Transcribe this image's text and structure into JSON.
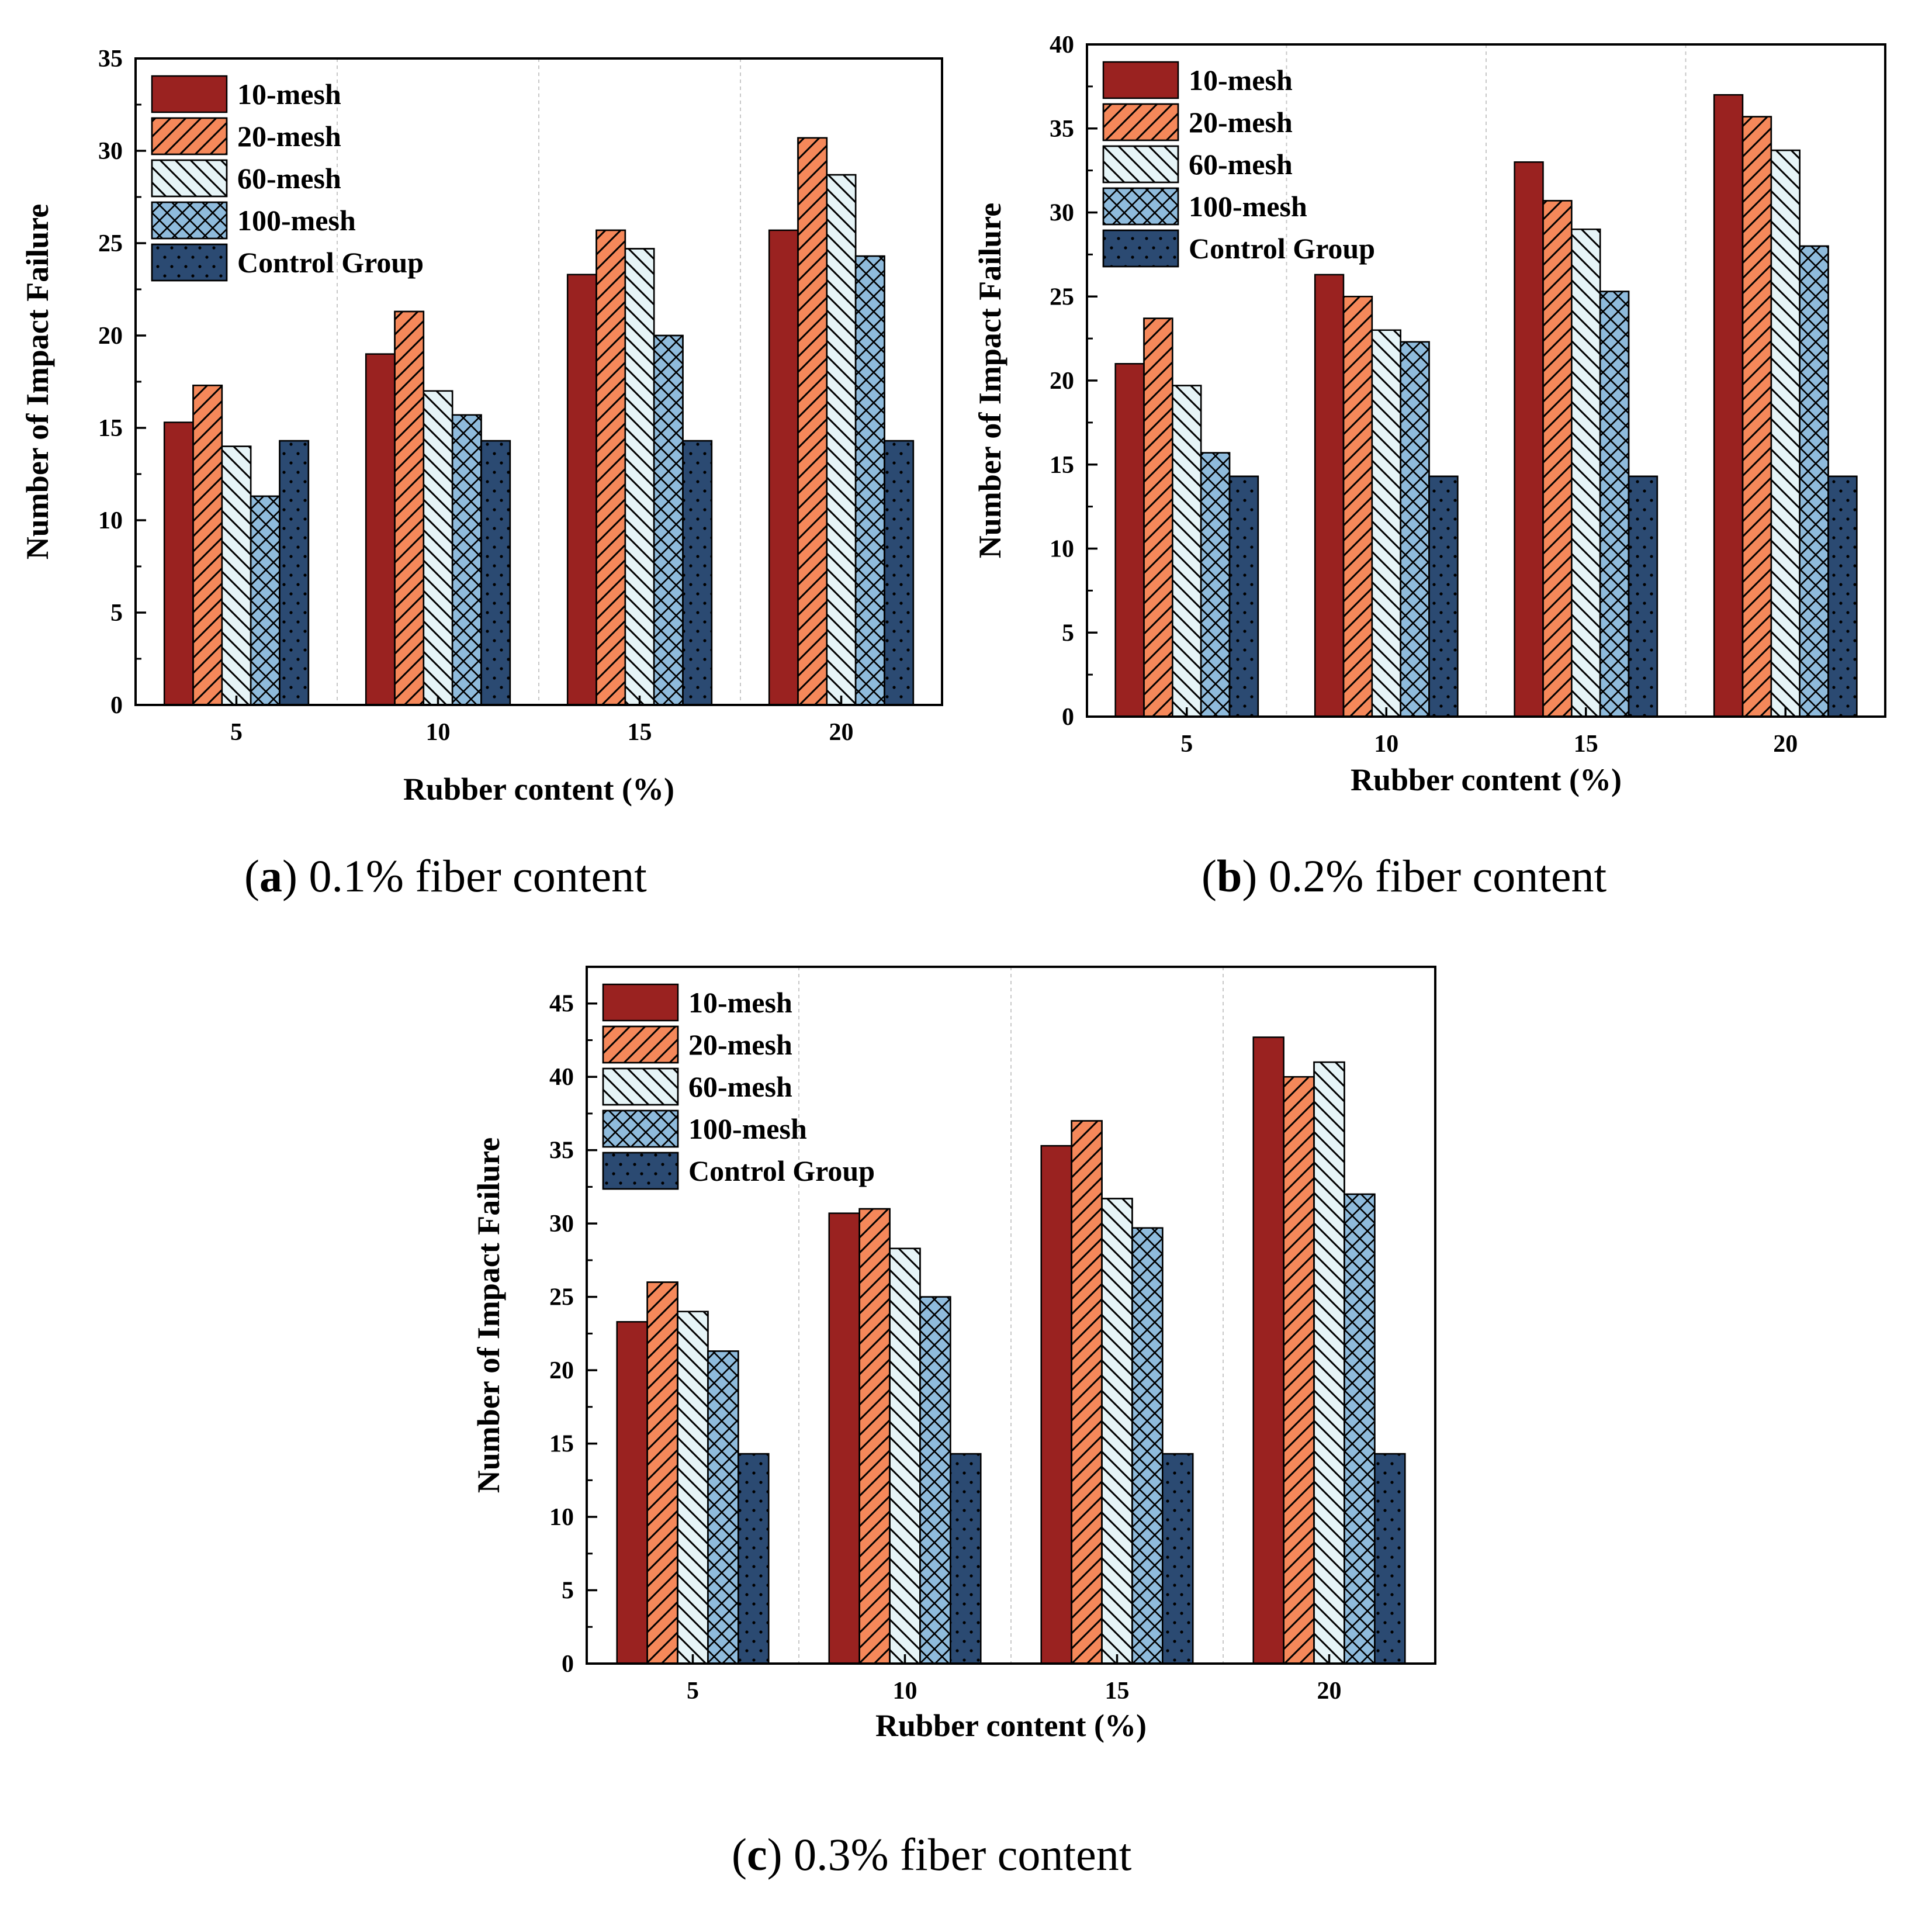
{
  "colors": {
    "s10": "#9a2220",
    "s20": "#f5885a",
    "s60": "#e6f4f7",
    "s100": "#8fbbdc",
    "control": "#2b4a72",
    "grid": "#c8c8c8"
  },
  "chart_data": [
    {
      "type": "bar",
      "panel": "a",
      "ylabel": "Number of Impact Failure",
      "xlabel": "Rubber content (%)",
      "ylim": [
        0,
        35
      ],
      "yticks": [
        "0",
        "5",
        "10",
        "15",
        "20",
        "25",
        "30",
        "35"
      ],
      "categories": [
        "5",
        "10",
        "15",
        "20"
      ],
      "series": [
        {
          "name": "10-mesh",
          "values": [
            15.3,
            19.0,
            23.3,
            25.7
          ]
        },
        {
          "name": "20-mesh",
          "values": [
            17.3,
            21.3,
            25.7,
            30.7
          ]
        },
        {
          "name": "60-mesh",
          "values": [
            14.0,
            17.0,
            24.7,
            28.7
          ]
        },
        {
          "name": "100-mesh",
          "values": [
            11.3,
            15.7,
            20.0,
            24.3
          ]
        },
        {
          "name": "Control Group",
          "values": [
            14.3,
            14.3,
            14.3,
            14.3
          ]
        }
      ],
      "caption": {
        "letter": "a",
        "text": " 0.1% fiber content"
      }
    },
    {
      "type": "bar",
      "panel": "b",
      "ylabel": "Number of Impact Failure",
      "xlabel": "Rubber content (%)",
      "ylim": [
        0,
        40
      ],
      "yticks": [
        "0",
        "5",
        "10",
        "15",
        "20",
        "25",
        "30",
        "35",
        "40"
      ],
      "categories": [
        "5",
        "10",
        "15",
        "20"
      ],
      "series": [
        {
          "name": "10-mesh",
          "values": [
            21.0,
            26.3,
            33.0,
            37.0
          ]
        },
        {
          "name": "20-mesh",
          "values": [
            23.7,
            25.0,
            30.7,
            35.7
          ]
        },
        {
          "name": "60-mesh",
          "values": [
            19.7,
            23.0,
            29.0,
            33.7
          ]
        },
        {
          "name": "100-mesh",
          "values": [
            15.7,
            22.3,
            25.3,
            28.0
          ]
        },
        {
          "name": "Control Group",
          "values": [
            14.3,
            14.3,
            14.3,
            14.3
          ]
        }
      ],
      "caption": {
        "letter": "b",
        "text": " 0.2% fiber content"
      }
    },
    {
      "type": "bar",
      "panel": "c",
      "ylabel": "Number of Impact Failure",
      "xlabel": "Rubber content (%)",
      "ylim": [
        0,
        47.5
      ],
      "yticks": [
        "0",
        "5",
        "10",
        "15",
        "20",
        "25",
        "30",
        "35",
        "40",
        "45"
      ],
      "categories": [
        "5",
        "10",
        "15",
        "20"
      ],
      "series": [
        {
          "name": "10-mesh",
          "values": [
            23.3,
            30.7,
            35.3,
            42.7
          ]
        },
        {
          "name": "20-mesh",
          "values": [
            26.0,
            31.0,
            37.0,
            40.0
          ]
        },
        {
          "name": "60-mesh",
          "values": [
            24.0,
            28.3,
            31.7,
            41.0
          ]
        },
        {
          "name": "100-mesh",
          "values": [
            21.3,
            25.0,
            29.7,
            32.0
          ]
        },
        {
          "name": "Control Group",
          "values": [
            14.3,
            14.3,
            14.3,
            14.3
          ]
        }
      ],
      "caption": {
        "letter": "c",
        "text": " 0.3% fiber content"
      }
    }
  ]
}
